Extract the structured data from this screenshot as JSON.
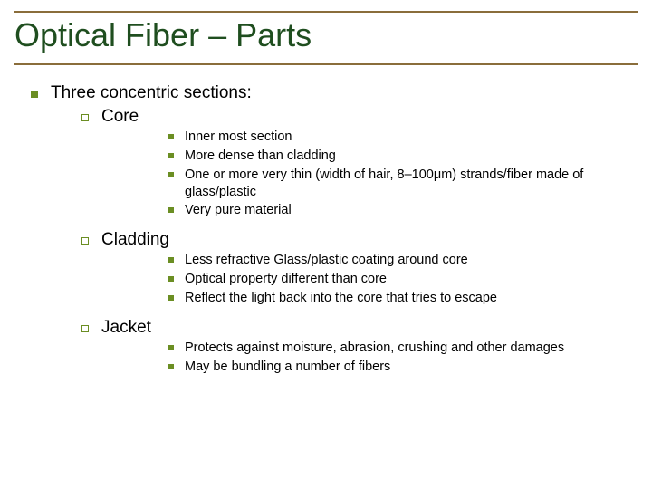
{
  "colors": {
    "title": "#1f4e1f",
    "rule": "#8a6d3b",
    "bullet": "#6b8e23",
    "text": "#000000",
    "background": "#ffffff"
  },
  "title": "Optical Fiber – Parts",
  "lvl1": "Three concentric sections:",
  "sections": {
    "core": {
      "label": "Core",
      "items": [
        "Inner most section",
        "More dense than cladding",
        "One or more very thin (width of hair, 8–100μm) strands/fiber made of glass/plastic",
        "Very pure material"
      ]
    },
    "cladding": {
      "label": "Cladding",
      "items": [
        "Less refractive Glass/plastic coating around core",
        "Optical property different than core",
        "Reflect the light back into the core that tries to escape"
      ]
    },
    "jacket": {
      "label": "Jacket",
      "items": [
        "Protects against moisture, abrasion, crushing and other damages",
        "May be bundling a number of fibers"
      ]
    }
  }
}
